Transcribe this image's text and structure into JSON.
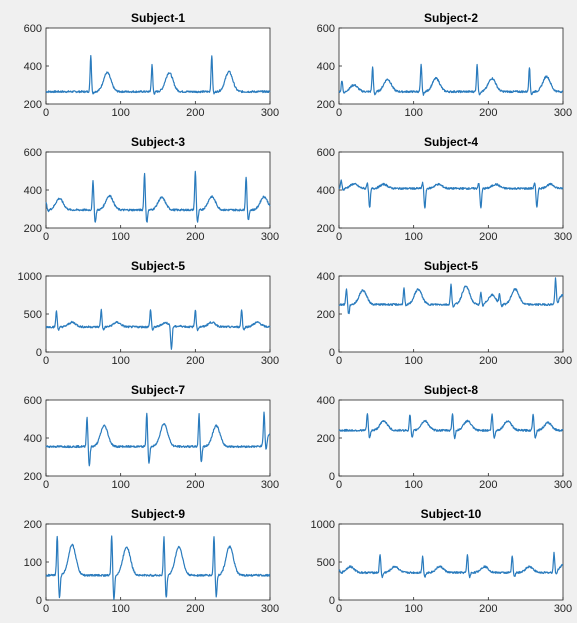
{
  "colors": {
    "background": "#f0f0f0",
    "line": "#2a7bbd",
    "axes": "#262626"
  },
  "chart_data": [
    {
      "type": "line",
      "title": "Subject-1",
      "xlim": [
        0,
        300
      ],
      "ylim": [
        200,
        600
      ],
      "xticks": [
        "0",
        "100",
        "200",
        "300"
      ],
      "yticks": [
        "200",
        "400",
        "600"
      ],
      "grid": false,
      "series": [
        {
          "baseline": 265,
          "beats": [
            {
              "x": 60,
              "peak": 455,
              "dip": 255,
              "t_x": 82,
              "t_peak": 365
            },
            {
              "x": 142,
              "peak": 405,
              "dip": 255,
              "t_x": 165,
              "t_peak": 365
            },
            {
              "x": 222,
              "peak": 458,
              "dip": 255,
              "t_x": 245,
              "t_peak": 370
            }
          ]
        }
      ]
    },
    {
      "type": "line",
      "title": "Subject-2",
      "xlim": [
        0,
        300
      ],
      "ylim": [
        200,
        600
      ],
      "xticks": [
        "0",
        "100",
        "200",
        "300"
      ],
      "yticks": [
        "200",
        "400",
        "600"
      ],
      "grid": false,
      "series": [
        {
          "baseline": 265,
          "beats": [
            {
              "x": 4,
              "peak": 325,
              "dip": 255,
              "t_x": 20,
              "t_peak": 300
            },
            {
              "x": 45,
              "peak": 392,
              "dip": 250,
              "t_x": 65,
              "t_peak": 330
            },
            {
              "x": 110,
              "peak": 405,
              "dip": 250,
              "t_x": 130,
              "t_peak": 335
            },
            {
              "x": 185,
              "peak": 410,
              "dip": 250,
              "t_x": 205,
              "t_peak": 335
            },
            {
              "x": 255,
              "peak": 395,
              "dip": 250,
              "t_x": 278,
              "t_peak": 345
            }
          ]
        }
      ]
    },
    {
      "type": "line",
      "title": "Subject-3",
      "xlim": [
        0,
        300
      ],
      "ylim": [
        200,
        600
      ],
      "xticks": [
        "0",
        "100",
        "200",
        "300"
      ],
      "yticks": [
        "200",
        "400",
        "600"
      ],
      "grid": false,
      "series": [
        {
          "baseline": 295,
          "beats": [
            {
              "x": 0,
              "peak": 340,
              "dip": 290,
              "t_x": 18,
              "t_peak": 355
            },
            {
              "x": 63,
              "peak": 450,
              "dip": 230,
              "t_x": 85,
              "t_peak": 370
            },
            {
              "x": 132,
              "peak": 490,
              "dip": 228,
              "t_x": 155,
              "t_peak": 360
            },
            {
              "x": 200,
              "peak": 500,
              "dip": 230,
              "t_x": 222,
              "t_peak": 365
            },
            {
              "x": 268,
              "peak": 470,
              "dip": 240,
              "t_x": 292,
              "t_peak": 365
            }
          ]
        }
      ]
    },
    {
      "type": "line",
      "title": "Subject-4",
      "xlim": [
        0,
        300
      ],
      "ylim": [
        200,
        600
      ],
      "xticks": [
        "0",
        "100",
        "200",
        "300"
      ],
      "yticks": [
        "200",
        "400",
        "600"
      ],
      "grid": false,
      "series": [
        {
          "baseline": 408,
          "beats": [
            {
              "x": 3,
              "peak": 450,
              "dip": 400,
              "t_x": 20,
              "t_peak": 432
            },
            {
              "x": 38,
              "peak": 440,
              "dip": 305,
              "t_x": 60,
              "t_peak": 430
            },
            {
              "x": 112,
              "peak": 438,
              "dip": 305,
              "t_x": 133,
              "t_peak": 430
            },
            {
              "x": 187,
              "peak": 438,
              "dip": 305,
              "t_x": 210,
              "t_peak": 430
            },
            {
              "x": 262,
              "peak": 440,
              "dip": 305,
              "t_x": 283,
              "t_peak": 430
            }
          ]
        }
      ]
    },
    {
      "type": "line",
      "title": "Subject-5",
      "xlim": [
        0,
        300
      ],
      "ylim": [
        0,
        1000
      ],
      "xticks": [
        "0",
        "100",
        "200",
        "300"
      ],
      "yticks": [
        "0",
        "500",
        "1000"
      ],
      "grid": false,
      "series": [
        {
          "baseline": 330,
          "beats": [
            {
              "x": 14,
              "peak": 540,
              "dip": 290,
              "t_x": 35,
              "t_peak": 390
            },
            {
              "x": 74,
              "peak": 555,
              "dip": 290,
              "t_x": 95,
              "t_peak": 390
            },
            {
              "x": 140,
              "peak": 560,
              "dip": 290,
              "t_x": 160,
              "t_peak": 385
            },
            {
              "x": 165,
              "peak": 330,
              "dip": 20,
              "t_x": 180,
              "t_peak": 340
            },
            {
              "x": 200,
              "peak": 560,
              "dip": 290,
              "t_x": 222,
              "t_peak": 390
            },
            {
              "x": 262,
              "peak": 560,
              "dip": 290,
              "t_x": 283,
              "t_peak": 390
            }
          ]
        }
      ]
    },
    {
      "type": "line",
      "title": "Subject-5",
      "xlim": [
        0,
        300
      ],
      "ylim": [
        0,
        400
      ],
      "xticks": [
        "0",
        "100",
        "200",
        "300"
      ],
      "yticks": [
        "0",
        "200",
        "400"
      ],
      "grid": false,
      "series": [
        {
          "baseline": 250,
          "beats": [
            {
              "x": 10,
              "peak": 335,
              "dip": 200,
              "t_x": 32,
              "t_peak": 325
            },
            {
              "x": 87,
              "peak": 335,
              "dip": 240,
              "t_x": 106,
              "t_peak": 330
            },
            {
              "x": 150,
              "peak": 355,
              "dip": 240,
              "t_x": 170,
              "t_peak": 345
            },
            {
              "x": 190,
              "peak": 310,
              "dip": 240,
              "t_x": 205,
              "t_peak": 300
            },
            {
              "x": 215,
              "peak": 300,
              "dip": 240,
              "t_x": 236,
              "t_peak": 330
            },
            {
              "x": 290,
              "peak": 380,
              "dip": 240,
              "t_x": 300,
              "t_peak": 300
            }
          ]
        }
      ]
    },
    {
      "type": "line",
      "title": "Subject-7",
      "xlim": [
        0,
        300
      ],
      "ylim": [
        200,
        600
      ],
      "xticks": [
        "0",
        "100",
        "200",
        "300"
      ],
      "yticks": [
        "200",
        "400",
        "600"
      ],
      "grid": false,
      "series": [
        {
          "baseline": 355,
          "beats": [
            {
              "x": 55,
              "peak": 510,
              "dip": 255,
              "t_x": 78,
              "t_peak": 465
            },
            {
              "x": 135,
              "peak": 535,
              "dip": 265,
              "t_x": 158,
              "t_peak": 475
            },
            {
              "x": 205,
              "peak": 525,
              "dip": 275,
              "t_x": 228,
              "t_peak": 465
            },
            {
              "x": 292,
              "peak": 520,
              "dip": 300,
              "t_x": 300,
              "t_peak": 420
            }
          ]
        }
      ]
    },
    {
      "type": "line",
      "title": "Subject-8",
      "xlim": [
        0,
        300
      ],
      "ylim": [
        0,
        400
      ],
      "xticks": [
        "0",
        "100",
        "200",
        "300"
      ],
      "yticks": [
        "0",
        "200",
        "400"
      ],
      "grid": false,
      "series": [
        {
          "baseline": 240,
          "beats": [
            {
              "x": 38,
              "peak": 330,
              "dip": 200,
              "t_x": 60,
              "t_peak": 290
            },
            {
              "x": 95,
              "peak": 325,
              "dip": 200,
              "t_x": 115,
              "t_peak": 290
            },
            {
              "x": 152,
              "peak": 330,
              "dip": 200,
              "t_x": 172,
              "t_peak": 290
            },
            {
              "x": 205,
              "peak": 325,
              "dip": 200,
              "t_x": 226,
              "t_peak": 290
            },
            {
              "x": 260,
              "peak": 330,
              "dip": 200,
              "t_x": 280,
              "t_peak": 280
            }
          ]
        }
      ]
    },
    {
      "type": "line",
      "title": "Subject-9",
      "xlim": [
        0,
        300
      ],
      "ylim": [
        0,
        200
      ],
      "xticks": [
        "0",
        "100",
        "200",
        "300"
      ],
      "yticks": [
        "0",
        "100",
        "200"
      ],
      "grid": false,
      "series": [
        {
          "baseline": 65,
          "beats": [
            {
              "x": 15,
              "peak": 170,
              "dip": 5,
              "t_x": 35,
              "t_peak": 145
            },
            {
              "x": 88,
              "peak": 168,
              "dip": 2,
              "t_x": 108,
              "t_peak": 140
            },
            {
              "x": 158,
              "peak": 165,
              "dip": 5,
              "t_x": 178,
              "t_peak": 140
            },
            {
              "x": 225,
              "peak": 168,
              "dip": 10,
              "t_x": 246,
              "t_peak": 140
            }
          ]
        }
      ]
    },
    {
      "type": "line",
      "title": "Subject-10",
      "xlim": [
        0,
        300
      ],
      "ylim": [
        0,
        1000
      ],
      "xticks": [
        "0",
        "100",
        "200",
        "300"
      ],
      "yticks": [
        "0",
        "500",
        "1000"
      ],
      "grid": false,
      "series": [
        {
          "baseline": 360,
          "beats": [
            {
              "x": 0,
              "peak": 400,
              "dip": 350,
              "t_x": 15,
              "t_peak": 440
            },
            {
              "x": 55,
              "peak": 600,
              "dip": 300,
              "t_x": 75,
              "t_peak": 440
            },
            {
              "x": 112,
              "peak": 580,
              "dip": 300,
              "t_x": 135,
              "t_peak": 440
            },
            {
              "x": 172,
              "peak": 600,
              "dip": 300,
              "t_x": 195,
              "t_peak": 440
            },
            {
              "x": 232,
              "peak": 590,
              "dip": 300,
              "t_x": 255,
              "t_peak": 440
            },
            {
              "x": 288,
              "peak": 610,
              "dip": 320,
              "t_x": 300,
              "t_peak": 460
            }
          ]
        }
      ]
    }
  ]
}
